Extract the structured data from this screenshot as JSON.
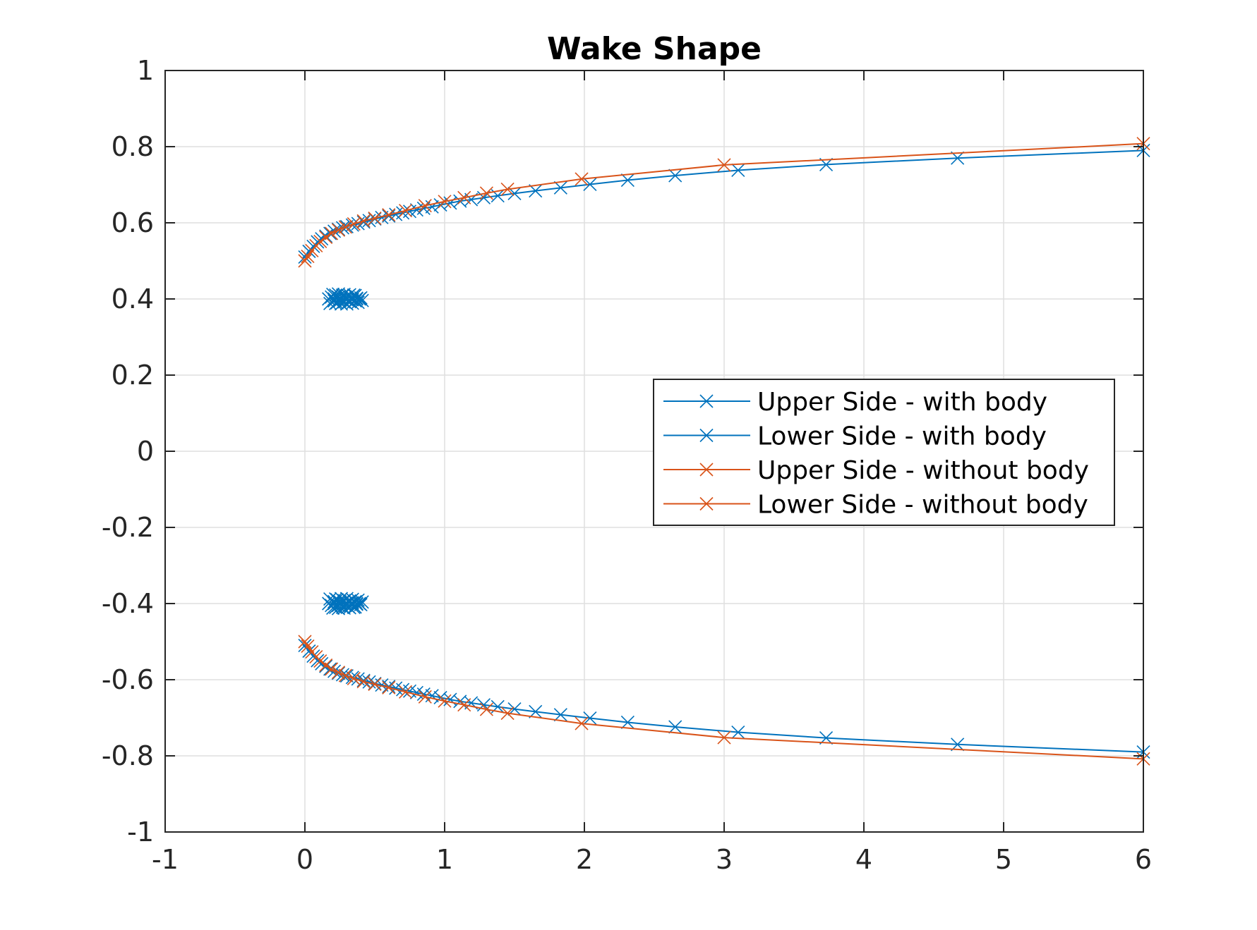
{
  "chart_data": {
    "type": "line",
    "title": "Wake Shape",
    "xlabel": "",
    "ylabel": "",
    "xlim": [
      -1,
      6
    ],
    "ylim": [
      -1,
      1
    ],
    "xticks": [
      "-1",
      "0",
      "1",
      "2",
      "3",
      "4",
      "5",
      "6"
    ],
    "yticks": [
      "1",
      "0.8",
      "0.6",
      "0.4",
      "0.2",
      "0",
      "-0.2",
      "-0.4",
      "-0.6",
      "-0.8",
      "-1"
    ],
    "grid": true,
    "marker": "x",
    "legend_position": "center-right",
    "series": [
      {
        "name": "Upper Side - with body",
        "color": "#0072bd",
        "x": [
          0,
          0.03,
          0.06,
          0.09,
          0.12,
          0.15,
          0.18,
          0.21,
          0.24,
          0.27,
          0.3,
          0.34,
          0.38,
          0.42,
          0.46,
          0.5,
          0.55,
          0.6,
          0.65,
          0.7,
          0.75,
          0.8,
          0.85,
          0.91,
          0.97,
          1.04,
          1.11,
          1.19,
          1.28,
          1.38,
          1.5,
          1.65,
          1.83,
          2.04,
          2.31,
          2.65,
          3.1,
          3.73,
          4.67,
          6.0
        ],
        "y": [
          0.51,
          0.525,
          0.538,
          0.55,
          0.558,
          0.565,
          0.572,
          0.578,
          0.583,
          0.587,
          0.59,
          0.594,
          0.598,
          0.602,
          0.606,
          0.61,
          0.614,
          0.618,
          0.622,
          0.626,
          0.63,
          0.634,
          0.638,
          0.642,
          0.647,
          0.652,
          0.657,
          0.661,
          0.666,
          0.671,
          0.677,
          0.684,
          0.692,
          0.701,
          0.712,
          0.724,
          0.738,
          0.753,
          0.77,
          0.79
        ]
      },
      {
        "name": "Lower Side - with body",
        "color": "#0072bd",
        "x": [
          0,
          0.03,
          0.06,
          0.09,
          0.12,
          0.15,
          0.18,
          0.21,
          0.24,
          0.27,
          0.3,
          0.34,
          0.38,
          0.42,
          0.46,
          0.5,
          0.55,
          0.6,
          0.65,
          0.7,
          0.75,
          0.8,
          0.85,
          0.91,
          0.97,
          1.04,
          1.11,
          1.19,
          1.28,
          1.38,
          1.5,
          1.65,
          1.83,
          2.04,
          2.31,
          2.65,
          3.1,
          3.73,
          4.67,
          6.0
        ],
        "y": [
          -0.51,
          -0.525,
          -0.538,
          -0.55,
          -0.558,
          -0.565,
          -0.572,
          -0.578,
          -0.583,
          -0.587,
          -0.59,
          -0.594,
          -0.598,
          -0.602,
          -0.606,
          -0.61,
          -0.614,
          -0.618,
          -0.622,
          -0.626,
          -0.63,
          -0.634,
          -0.638,
          -0.642,
          -0.647,
          -0.652,
          -0.657,
          -0.661,
          -0.666,
          -0.671,
          -0.677,
          -0.684,
          -0.692,
          -0.701,
          -0.712,
          -0.724,
          -0.738,
          -0.753,
          -0.77,
          -0.79
        ]
      },
      {
        "name": "Upper Side - without body",
        "color": "#d95319",
        "x": [
          0,
          0.02,
          0.05,
          0.08,
          0.11,
          0.15,
          0.19,
          0.24,
          0.29,
          0.35,
          0.42,
          0.5,
          0.6,
          0.72,
          0.86,
          1.0,
          1.14,
          1.3,
          1.45,
          1.98,
          3.0,
          6.0
        ],
        "y": [
          0.5,
          0.512,
          0.527,
          0.54,
          0.551,
          0.562,
          0.572,
          0.581,
          0.589,
          0.597,
          0.605,
          0.612,
          0.621,
          0.632,
          0.645,
          0.656,
          0.666,
          0.678,
          0.688,
          0.715,
          0.752,
          0.808
        ]
      },
      {
        "name": "Lower Side - without body",
        "color": "#d95319",
        "x": [
          0,
          0.02,
          0.05,
          0.08,
          0.11,
          0.15,
          0.19,
          0.24,
          0.29,
          0.35,
          0.42,
          0.5,
          0.6,
          0.72,
          0.86,
          1.0,
          1.14,
          1.3,
          1.45,
          1.98,
          3.0,
          6.0
        ],
        "y": [
          -0.5,
          -0.512,
          -0.527,
          -0.54,
          -0.551,
          -0.562,
          -0.572,
          -0.581,
          -0.589,
          -0.597,
          -0.605,
          -0.612,
          -0.621,
          -0.632,
          -0.645,
          -0.656,
          -0.666,
          -0.678,
          -0.688,
          -0.715,
          -0.752,
          -0.808
        ]
      },
      {
        "name": "",
        "color": "#0072bd",
        "line": false,
        "x": [
          0.17,
          0.19,
          0.21,
          0.22,
          0.23,
          0.24,
          0.25,
          0.26,
          0.27,
          0.28,
          0.29,
          0.3,
          0.31,
          0.32,
          0.33,
          0.34,
          0.35,
          0.36,
          0.37,
          0.39,
          0.41,
          0.18,
          0.2,
          0.22,
          0.24,
          0.26,
          0.28,
          0.3,
          0.32,
          0.34,
          0.36,
          0.38,
          0.4,
          0.21,
          0.25,
          0.29,
          0.33,
          0.37
        ],
        "y": [
          0.4,
          0.405,
          0.395,
          0.41,
          0.39,
          0.405,
          0.395,
          0.4,
          0.41,
          0.392,
          0.405,
          0.398,
          0.408,
          0.393,
          0.403,
          0.398,
          0.41,
          0.395,
          0.402,
          0.4,
          0.396,
          0.388,
          0.412,
          0.388,
          0.413,
          0.387,
          0.412,
          0.387,
          0.411,
          0.389,
          0.409,
          0.391,
          0.403,
          0.4,
          0.4,
          0.4,
          0.4,
          0.4
        ]
      },
      {
        "name": "",
        "color": "#0072bd",
        "line": false,
        "x": [
          0.17,
          0.19,
          0.21,
          0.22,
          0.23,
          0.24,
          0.25,
          0.26,
          0.27,
          0.28,
          0.29,
          0.3,
          0.31,
          0.32,
          0.33,
          0.34,
          0.35,
          0.36,
          0.37,
          0.39,
          0.41,
          0.18,
          0.2,
          0.22,
          0.24,
          0.26,
          0.28,
          0.3,
          0.32,
          0.34,
          0.36,
          0.38,
          0.4,
          0.21,
          0.25,
          0.29,
          0.33,
          0.37
        ],
        "y": [
          -0.4,
          -0.405,
          -0.395,
          -0.41,
          -0.39,
          -0.405,
          -0.395,
          -0.4,
          -0.41,
          -0.392,
          -0.405,
          -0.398,
          -0.408,
          -0.393,
          -0.403,
          -0.398,
          -0.41,
          -0.395,
          -0.402,
          -0.4,
          -0.396,
          -0.388,
          -0.412,
          -0.388,
          -0.413,
          -0.387,
          -0.412,
          -0.387,
          -0.411,
          -0.389,
          -0.409,
          -0.391,
          -0.403,
          -0.4,
          -0.4,
          -0.4,
          -0.4,
          -0.4
        ]
      }
    ]
  }
}
